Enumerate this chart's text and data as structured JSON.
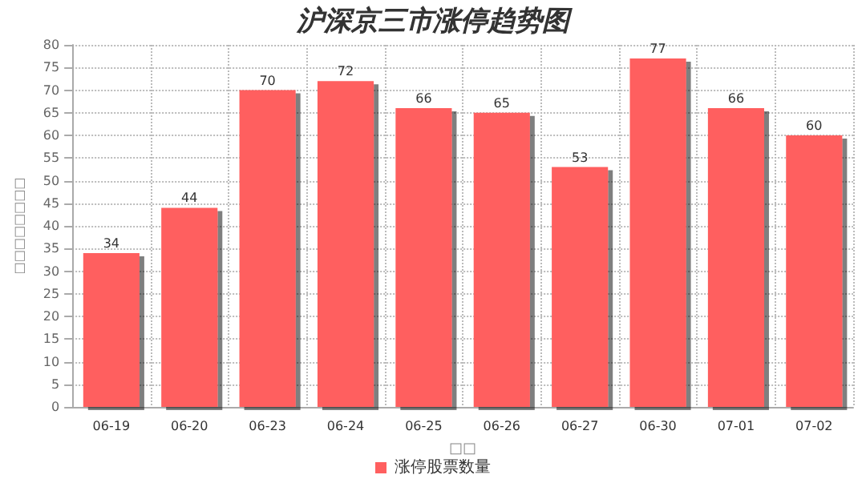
{
  "chart_data": {
    "type": "bar",
    "title": "沪深京三市涨停趋势图",
    "xlabel": "□□",
    "ylabel": "□□□□□□□□",
    "categories": [
      "06-19",
      "06-20",
      "06-23",
      "06-24",
      "06-25",
      "06-26",
      "06-27",
      "06-30",
      "07-01",
      "07-02"
    ],
    "series": [
      {
        "name": "涨停股票数量",
        "color": "#ff5f5f",
        "values": [
          34,
          44,
          70,
          72,
          66,
          65,
          53,
          77,
          66,
          60
        ]
      }
    ],
    "ylim": [
      0,
      80
    ],
    "yticks": [
      0,
      5,
      10,
      15,
      20,
      25,
      30,
      35,
      40,
      45,
      50,
      55,
      60,
      65,
      70,
      75,
      80
    ],
    "grid": true,
    "legend": "bottom",
    "data_labels": true
  }
}
